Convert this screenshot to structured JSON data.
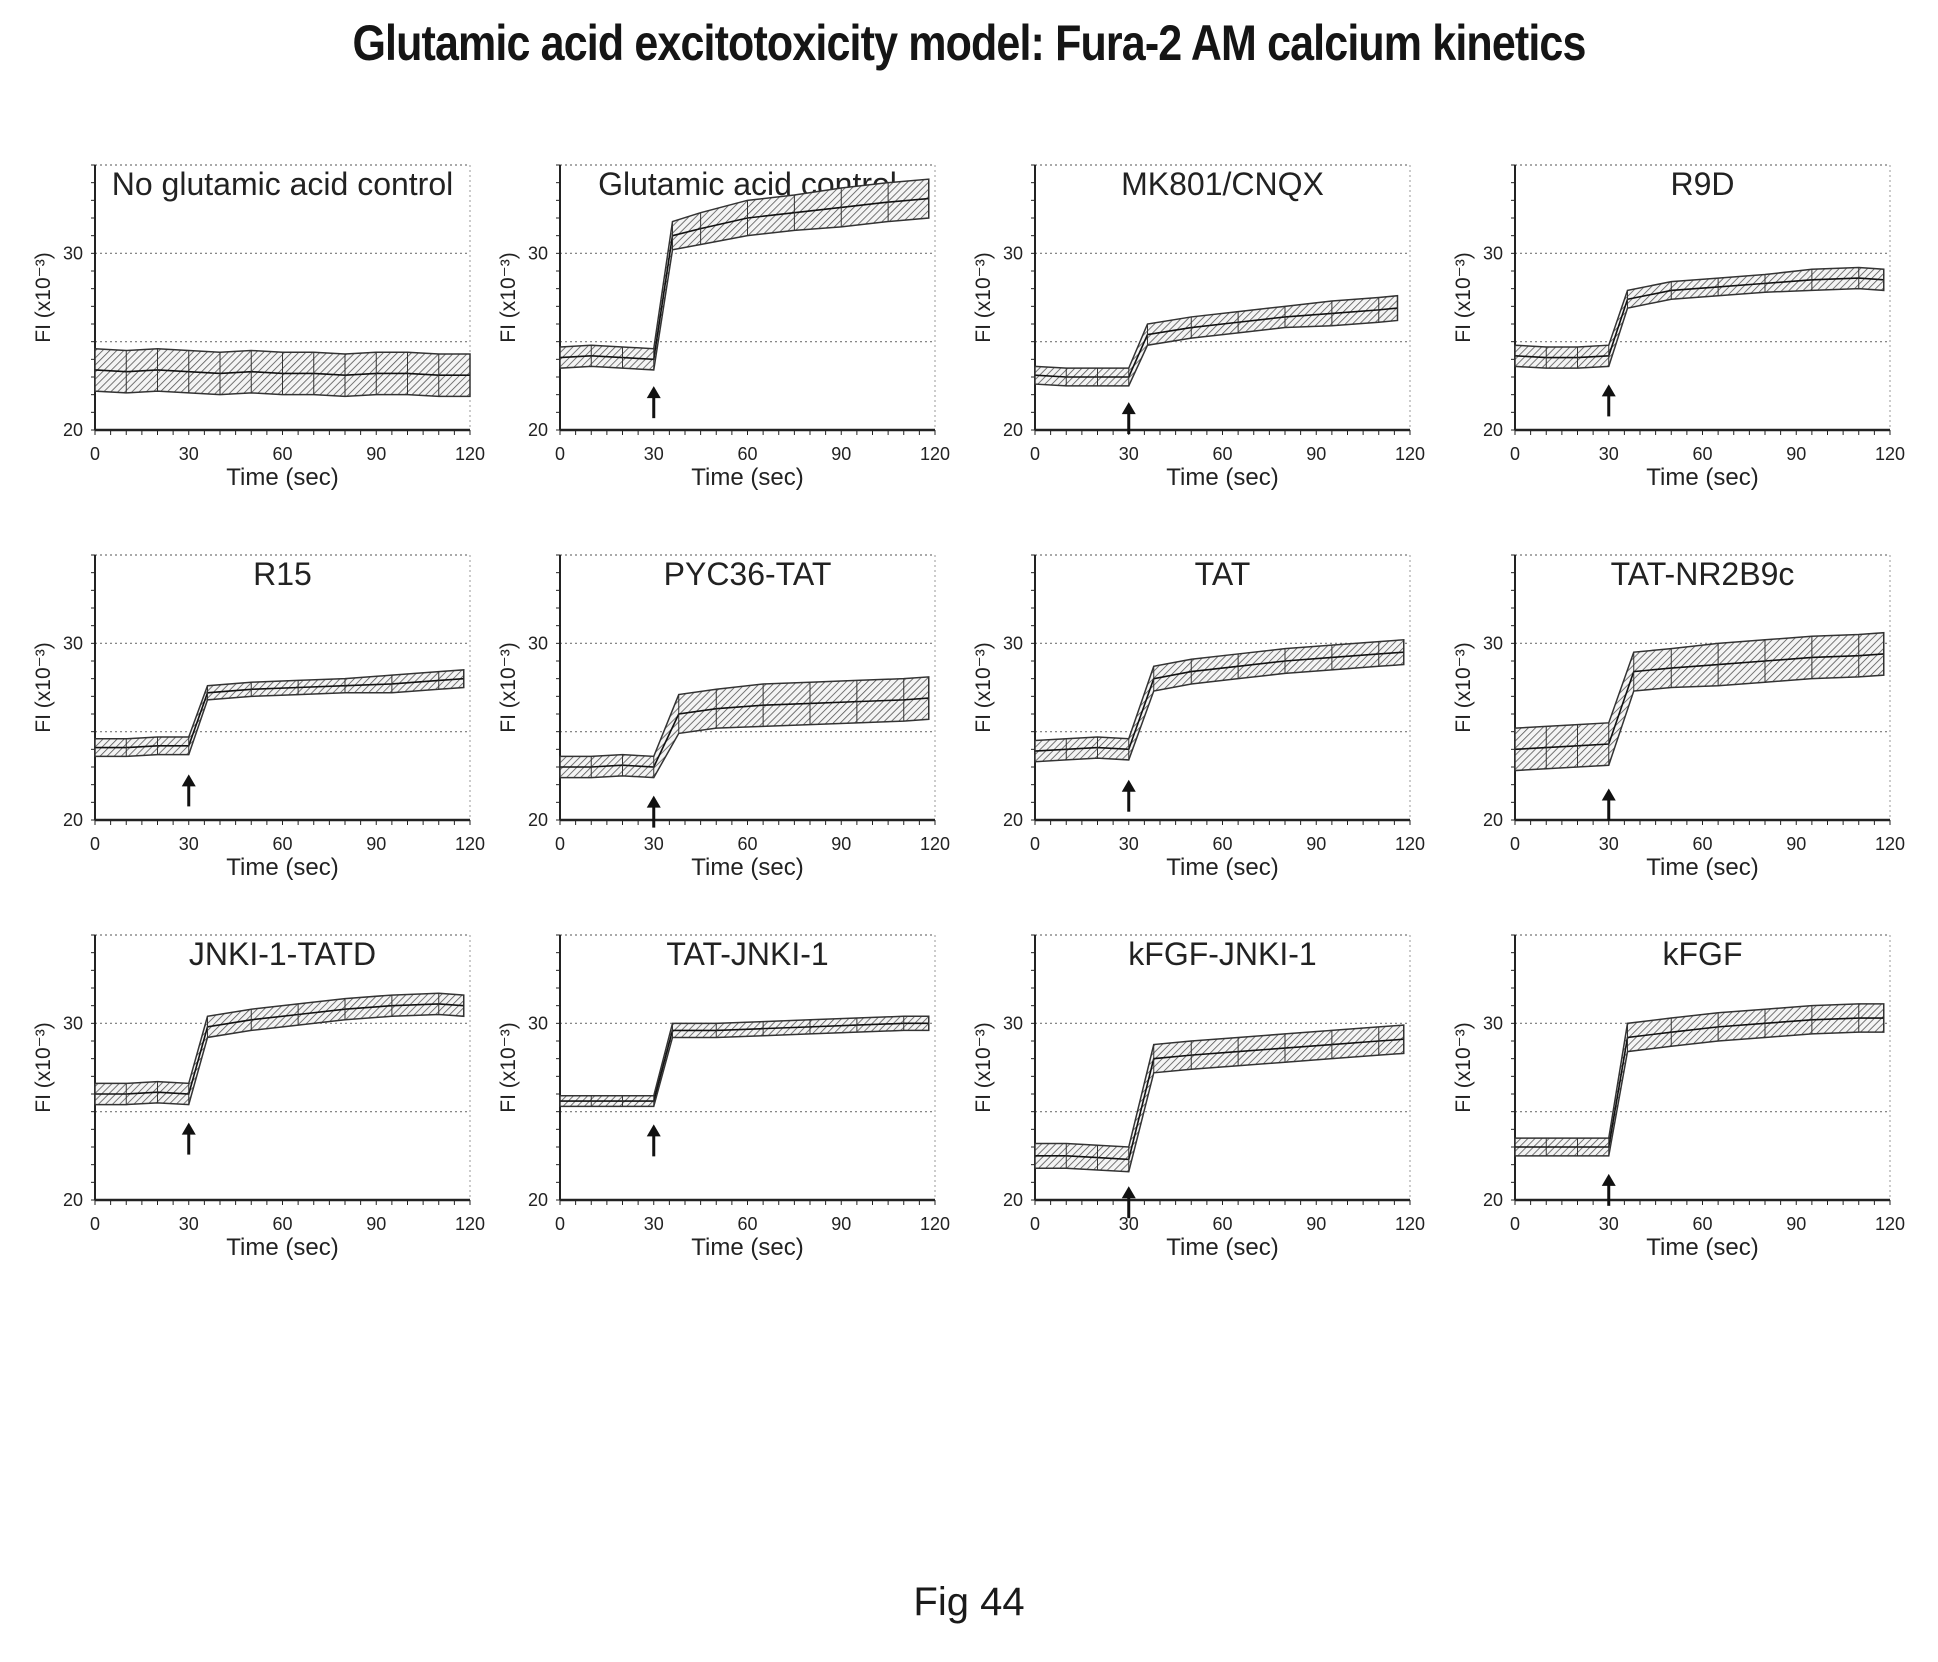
{
  "title": "Glutamic acid excitotoxicity model: Fura-2 AM calcium kinetics",
  "figure_label": "Fig 44",
  "chart_data": [
    {
      "type": "line",
      "title": "No glutamic acid control",
      "xlabel": "Time (sec)",
      "ylabel": "FI (x10⁻³)",
      "xlim": [
        0,
        120
      ],
      "ylim": [
        20,
        35
      ],
      "xticks": [
        0,
        30,
        60,
        90,
        120
      ],
      "yticks": [
        20,
        30
      ],
      "grid": true,
      "stimulus_arrow_x": null,
      "series": [
        {
          "x": [
            0,
            10,
            20,
            30,
            40,
            50,
            60,
            70,
            80,
            90,
            100,
            110,
            120
          ],
          "y": [
            23.4,
            23.3,
            23.4,
            23.3,
            23.2,
            23.3,
            23.2,
            23.2,
            23.1,
            23.2,
            23.2,
            23.1,
            23.1
          ],
          "err": [
            1.2,
            1.2,
            1.2,
            1.2,
            1.2,
            1.2,
            1.2,
            1.2,
            1.2,
            1.2,
            1.2,
            1.2,
            1.2
          ]
        }
      ]
    },
    {
      "type": "line",
      "title": "Glutamic acid control",
      "xlabel": "Time (sec)",
      "ylabel": "FI (x10⁻³)",
      "xlim": [
        0,
        120
      ],
      "ylim": [
        20,
        35
      ],
      "xticks": [
        0,
        30,
        60,
        90,
        120
      ],
      "yticks": [
        20,
        30
      ],
      "grid": true,
      "stimulus_arrow_x": 30,
      "series": [
        {
          "x": [
            0,
            10,
            20,
            30,
            36,
            45,
            60,
            75,
            90,
            105,
            118
          ],
          "y": [
            24.1,
            24.2,
            24.1,
            24.0,
            31.0,
            31.4,
            32.0,
            32.3,
            32.6,
            32.9,
            33.1
          ],
          "err": [
            0.6,
            0.6,
            0.6,
            0.6,
            0.8,
            0.9,
            1.0,
            1.0,
            1.1,
            1.1,
            1.1
          ]
        }
      ]
    },
    {
      "type": "line",
      "title": "MK801/CNQX",
      "xlabel": "Time (sec)",
      "ylabel": "FI (x10⁻³)",
      "xlim": [
        0,
        120
      ],
      "ylim": [
        20,
        35
      ],
      "xticks": [
        0,
        30,
        60,
        90,
        120
      ],
      "yticks": [
        20,
        30
      ],
      "grid": true,
      "stimulus_arrow_x": 30,
      "series": [
        {
          "x": [
            0,
            10,
            20,
            30,
            36,
            50,
            65,
            80,
            95,
            110,
            116
          ],
          "y": [
            23.1,
            23.0,
            23.0,
            23.0,
            25.4,
            25.8,
            26.1,
            26.4,
            26.6,
            26.8,
            26.9
          ],
          "err": [
            0.5,
            0.5,
            0.5,
            0.5,
            0.6,
            0.6,
            0.6,
            0.6,
            0.7,
            0.7,
            0.7
          ]
        }
      ]
    },
    {
      "type": "line",
      "title": "R9D",
      "xlabel": "Time (sec)",
      "ylabel": "FI (x10⁻³)",
      "xlim": [
        0,
        120
      ],
      "ylim": [
        20,
        35
      ],
      "xticks": [
        0,
        30,
        60,
        90,
        120
      ],
      "yticks": [
        20,
        30
      ],
      "grid": true,
      "stimulus_arrow_x": 30,
      "series": [
        {
          "x": [
            0,
            10,
            20,
            30,
            36,
            50,
            65,
            80,
            95,
            110,
            118
          ],
          "y": [
            24.2,
            24.1,
            24.1,
            24.2,
            27.4,
            27.9,
            28.1,
            28.3,
            28.5,
            28.6,
            28.5
          ],
          "err": [
            0.6,
            0.6,
            0.6,
            0.6,
            0.5,
            0.5,
            0.5,
            0.5,
            0.6,
            0.6,
            0.6
          ]
        }
      ]
    },
    {
      "type": "line",
      "title": "R15",
      "xlabel": "Time (sec)",
      "ylabel": "FI (x10⁻³)",
      "xlim": [
        0,
        120
      ],
      "ylim": [
        20,
        35
      ],
      "xticks": [
        0,
        30,
        60,
        90,
        120
      ],
      "yticks": [
        20,
        30
      ],
      "grid": true,
      "stimulus_arrow_x": 30,
      "series": [
        {
          "x": [
            0,
            10,
            20,
            30,
            36,
            50,
            65,
            80,
            95,
            110,
            118
          ],
          "y": [
            24.1,
            24.1,
            24.2,
            24.2,
            27.2,
            27.4,
            27.5,
            27.6,
            27.7,
            27.9,
            28.0
          ],
          "err": [
            0.5,
            0.5,
            0.5,
            0.5,
            0.4,
            0.4,
            0.4,
            0.4,
            0.5,
            0.5,
            0.5
          ]
        }
      ]
    },
    {
      "type": "line",
      "title": "PYC36-TAT",
      "xlabel": "Time (sec)",
      "ylabel": "FI (x10⁻³)",
      "xlim": [
        0,
        120
      ],
      "ylim": [
        20,
        35
      ],
      "xticks": [
        0,
        30,
        60,
        90,
        120
      ],
      "yticks": [
        20,
        30
      ],
      "grid": true,
      "stimulus_arrow_x": 30,
      "series": [
        {
          "x": [
            0,
            10,
            20,
            30,
            38,
            50,
            65,
            80,
            95,
            110,
            118
          ],
          "y": [
            23.0,
            23.0,
            23.1,
            23.0,
            26.0,
            26.3,
            26.5,
            26.6,
            26.7,
            26.8,
            26.9
          ],
          "err": [
            0.6,
            0.6,
            0.6,
            0.6,
            1.1,
            1.1,
            1.2,
            1.2,
            1.2,
            1.2,
            1.2
          ]
        }
      ]
    },
    {
      "type": "line",
      "title": "TAT",
      "xlabel": "Time (sec)",
      "ylabel": "FI (x10⁻³)",
      "xlim": [
        0,
        120
      ],
      "ylim": [
        20,
        35
      ],
      "xticks": [
        0,
        30,
        60,
        90,
        120
      ],
      "yticks": [
        20,
        30
      ],
      "grid": true,
      "stimulus_arrow_x": 30,
      "series": [
        {
          "x": [
            0,
            10,
            20,
            30,
            38,
            50,
            65,
            80,
            95,
            110,
            118
          ],
          "y": [
            23.9,
            24.0,
            24.1,
            24.0,
            28.0,
            28.4,
            28.7,
            29.0,
            29.2,
            29.4,
            29.5
          ],
          "err": [
            0.6,
            0.6,
            0.6,
            0.6,
            0.7,
            0.7,
            0.7,
            0.7,
            0.7,
            0.7,
            0.7
          ]
        }
      ]
    },
    {
      "type": "line",
      "title": "TAT-NR2B9c",
      "xlabel": "Time (sec)",
      "ylabel": "FI (x10⁻³)",
      "xlim": [
        0,
        120
      ],
      "ylim": [
        20,
        35
      ],
      "xticks": [
        0,
        30,
        60,
        90,
        120
      ],
      "yticks": [
        20,
        30
      ],
      "grid": true,
      "stimulus_arrow_x": 30,
      "series": [
        {
          "x": [
            0,
            10,
            20,
            30,
            38,
            50,
            65,
            80,
            95,
            110,
            118
          ],
          "y": [
            24.0,
            24.1,
            24.2,
            24.3,
            28.4,
            28.6,
            28.8,
            29.0,
            29.2,
            29.3,
            29.4
          ],
          "err": [
            1.2,
            1.2,
            1.2,
            1.2,
            1.1,
            1.1,
            1.2,
            1.2,
            1.2,
            1.2,
            1.2
          ]
        }
      ]
    },
    {
      "type": "line",
      "title": "JNKI-1-TATD",
      "xlabel": "Time (sec)",
      "ylabel": "FI (x10⁻³)",
      "xlim": [
        0,
        120
      ],
      "ylim": [
        20,
        35
      ],
      "xticks": [
        0,
        30,
        60,
        90,
        120
      ],
      "yticks": [
        20,
        30
      ],
      "grid": true,
      "stimulus_arrow_x": 30,
      "series": [
        {
          "x": [
            0,
            10,
            20,
            30,
            36,
            50,
            65,
            80,
            95,
            110,
            118
          ],
          "y": [
            26.0,
            26.0,
            26.1,
            26.0,
            29.8,
            30.2,
            30.5,
            30.8,
            31.0,
            31.1,
            31.0
          ],
          "err": [
            0.6,
            0.6,
            0.6,
            0.6,
            0.6,
            0.6,
            0.6,
            0.6,
            0.6,
            0.6,
            0.6
          ]
        }
      ]
    },
    {
      "type": "line",
      "title": "TAT-JNKI-1",
      "xlabel": "Time (sec)",
      "ylabel": "FI (x10⁻³)",
      "xlim": [
        0,
        120
      ],
      "ylim": [
        20,
        35
      ],
      "xticks": [
        0,
        30,
        60,
        90,
        120
      ],
      "yticks": [
        20,
        30
      ],
      "grid": true,
      "stimulus_arrow_x": 30,
      "series": [
        {
          "x": [
            0,
            10,
            20,
            30,
            36,
            50,
            65,
            80,
            95,
            110,
            118
          ],
          "y": [
            25.6,
            25.6,
            25.6,
            25.6,
            29.6,
            29.6,
            29.7,
            29.8,
            29.9,
            30.0,
            30.0
          ],
          "err": [
            0.3,
            0.3,
            0.3,
            0.3,
            0.4,
            0.4,
            0.4,
            0.4,
            0.4,
            0.4,
            0.4
          ]
        }
      ]
    },
    {
      "type": "line",
      "title": "kFGF-JNKI-1",
      "xlabel": "Time (sec)",
      "ylabel": "FI (x10⁻³)",
      "xlim": [
        0,
        120
      ],
      "ylim": [
        20,
        35
      ],
      "xticks": [
        0,
        30,
        60,
        90,
        120
      ],
      "yticks": [
        20,
        30
      ],
      "grid": true,
      "stimulus_arrow_x": 30,
      "series": [
        {
          "x": [
            0,
            10,
            20,
            30,
            38,
            50,
            65,
            80,
            95,
            110,
            118
          ],
          "y": [
            22.5,
            22.5,
            22.4,
            22.3,
            28.0,
            28.2,
            28.4,
            28.6,
            28.8,
            29.0,
            29.1
          ],
          "err": [
            0.7,
            0.7,
            0.7,
            0.7,
            0.8,
            0.8,
            0.8,
            0.8,
            0.8,
            0.8,
            0.8
          ]
        }
      ]
    },
    {
      "type": "line",
      "title": "kFGF",
      "xlabel": "Time (sec)",
      "ylabel": "FI (x10⁻³)",
      "xlim": [
        0,
        120
      ],
      "ylim": [
        20,
        35
      ],
      "xticks": [
        0,
        30,
        60,
        90,
        120
      ],
      "yticks": [
        20,
        30
      ],
      "grid": true,
      "stimulus_arrow_x": 30,
      "series": [
        {
          "x": [
            0,
            10,
            20,
            30,
            36,
            50,
            65,
            80,
            95,
            110,
            118
          ],
          "y": [
            23.0,
            23.0,
            23.0,
            23.0,
            29.2,
            29.5,
            29.8,
            30.0,
            30.2,
            30.3,
            30.3
          ],
          "err": [
            0.5,
            0.5,
            0.5,
            0.5,
            0.8,
            0.8,
            0.8,
            0.8,
            0.8,
            0.8,
            0.8
          ]
        }
      ]
    }
  ]
}
